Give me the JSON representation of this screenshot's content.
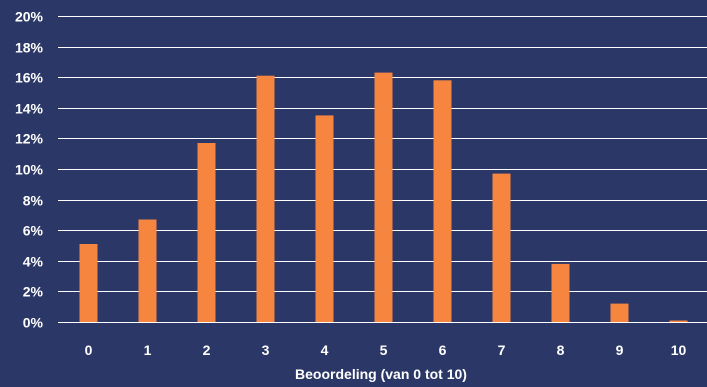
{
  "chart_data": {
    "type": "bar",
    "categories": [
      "0",
      "1",
      "2",
      "3",
      "4",
      "5",
      "6",
      "7",
      "8",
      "9",
      "10"
    ],
    "values": [
      5.1,
      6.7,
      11.7,
      16.1,
      13.5,
      16.3,
      15.8,
      9.7,
      3.8,
      1.2,
      0.1
    ],
    "title": "",
    "xlabel": "Beoordeling (van 0 tot 10)",
    "ylabel": "",
    "ylim": [
      0,
      20
    ],
    "y_ticks": [
      0,
      2,
      4,
      6,
      8,
      10,
      12,
      14,
      16,
      18,
      20
    ],
    "y_tick_labels": [
      "0%",
      "2%",
      "4%",
      "6%",
      "8%",
      "10%",
      "12%",
      "14%",
      "16%",
      "18%",
      "20%"
    ],
    "grid": true,
    "legend": "none",
    "colors": {
      "background": "#2b3766",
      "bar": "#f5853f",
      "grid": "#ffffff",
      "text": "#ffffff"
    }
  }
}
